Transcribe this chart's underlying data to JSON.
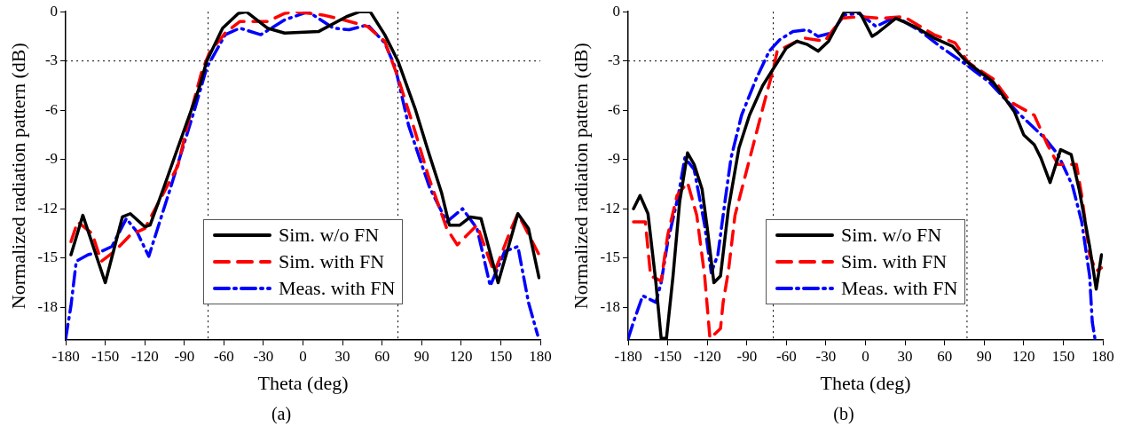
{
  "chart_data": [
    {
      "type": "line",
      "xlabel": "Theta (deg)",
      "ylabel": "Normalized radiation pattern (dB)",
      "annotations": [
        "(a)"
      ],
      "xlim": [
        -180,
        180
      ],
      "xticks": [
        -180,
        -150,
        -120,
        -90,
        -60,
        -30,
        0,
        30,
        60,
        90,
        120,
        150,
        180
      ],
      "ylim": [
        -20,
        0
      ],
      "yticks": [
        -18,
        -15,
        -12,
        -9,
        -6,
        -3,
        0
      ],
      "grid": false,
      "legend": "bottom",
      "marker": "none",
      "ref_lines": [
        {
          "axis": "x",
          "value": -72,
          "line_style": "dotted",
          "color": "#000000"
        },
        {
          "axis": "x",
          "value": 72,
          "line_style": "dotted",
          "color": "#000000"
        },
        {
          "axis": "y",
          "value": -3,
          "line_style": "dotted",
          "color": "#000000"
        }
      ],
      "series": [
        {
          "name": "Sim. w/o FN",
          "color": "#000000",
          "line_style": "solid",
          "x": [
            -176,
            -167,
            -150,
            -137,
            -131,
            -120,
            -116,
            -106,
            -95,
            -79,
            -73,
            -61,
            -49,
            -43,
            -27,
            -14,
            12,
            33,
            43,
            51,
            62,
            72,
            85,
            95,
            105,
            111,
            119,
            127,
            135,
            148,
            163,
            171,
            179
          ],
          "values": [
            -14.8,
            -12.4,
            -16.5,
            -12.5,
            -12.3,
            -13.1,
            -13,
            -10.8,
            -8.3,
            -4.7,
            -3,
            -1,
            -0.1,
            0,
            -1,
            -1.3,
            -1.2,
            -0.3,
            0,
            0,
            -1.4,
            -3,
            -5.9,
            -8.5,
            -11,
            -13,
            -13,
            -12.5,
            -12.6,
            -16.5,
            -12.3,
            -13.2,
            -16.2
          ]
        },
        {
          "name": "Sim. with FN",
          "color": "#ff0000",
          "line_style": "dashed",
          "x": [
            -176,
            -171,
            -160,
            -153,
            -143,
            -131,
            -120,
            -95,
            -87,
            -77,
            -71,
            -59,
            -48,
            -27,
            -14,
            -6,
            15,
            31,
            49,
            62,
            72,
            85,
            95,
            109,
            117,
            132,
            145,
            158,
            163,
            179
          ],
          "values": [
            -14,
            -12.8,
            -13.5,
            -15.2,
            -14.6,
            -13.6,
            -13.2,
            -9.4,
            -6.7,
            -3.7,
            -2.5,
            -1.3,
            -0.6,
            -0.6,
            -0.1,
            0,
            -0.2,
            -0.5,
            -0.9,
            -1.8,
            -4,
            -7.3,
            -10,
            -13.2,
            -14.2,
            -13,
            -15.9,
            -13.2,
            -12.3,
            -14.8
          ]
        },
        {
          "name": "Meas. with FN",
          "color": "#0000ff",
          "line_style": "dashdot",
          "x": [
            -180,
            -176,
            -172,
            -163,
            -153,
            -145,
            -134,
            -126,
            -117,
            -100,
            -92,
            -82,
            -73,
            -59,
            -48,
            -32,
            -14,
            4,
            23,
            35,
            49,
            62,
            70,
            80,
            90,
            96,
            109,
            121,
            132,
            142,
            153,
            163,
            171,
            178
          ],
          "values": [
            -19.9,
            -17.9,
            -15.2,
            -14.8,
            -14.6,
            -14.3,
            -12.6,
            -13.4,
            -14.9,
            -10.6,
            -8.5,
            -5.9,
            -3.4,
            -1.4,
            -1,
            -1.4,
            -0.5,
            0,
            -1,
            -1.1,
            -0.8,
            -1.9,
            -3.4,
            -6.9,
            -9.3,
            -10.7,
            -12.8,
            -12,
            -13.2,
            -16.7,
            -14.6,
            -14.3,
            -17.7,
            -19.7
          ]
        }
      ]
    },
    {
      "type": "line",
      "xlabel": "Theta (deg)",
      "ylabel": "Normalized radiation pattern (dB)",
      "annotations": [
        "(b)"
      ],
      "xlim": [
        -180,
        180
      ],
      "xticks": [
        -180,
        -150,
        -120,
        -90,
        -60,
        -30,
        0,
        30,
        60,
        90,
        120,
        150,
        180
      ],
      "ylim": [
        -20,
        0
      ],
      "yticks": [
        -18,
        -15,
        -12,
        -9,
        -6,
        -3,
        0
      ],
      "grid": false,
      "legend": "bottom",
      "marker": "none",
      "ref_lines": [
        {
          "axis": "x",
          "value": -70,
          "line_style": "dotted",
          "color": "#000000"
        },
        {
          "axis": "x",
          "value": 77,
          "line_style": "dotted",
          "color": "#000000"
        },
        {
          "axis": "y",
          "value": -3,
          "line_style": "dotted",
          "color": "#000000"
        }
      ],
      "series": [
        {
          "name": "Sim. w/o FN",
          "color": "#000000",
          "line_style": "solid",
          "x": [
            -176,
            -171,
            -165,
            -159,
            -155,
            -151,
            -146,
            -141,
            -135,
            -130,
            -124,
            -120,
            -115,
            -110,
            -104,
            -96,
            -88,
            -78,
            -67,
            -60,
            -52,
            -44,
            -36,
            -28,
            -16,
            -5,
            -2,
            5,
            9,
            23,
            37,
            52,
            66,
            76,
            97,
            113,
            120,
            128,
            133,
            140,
            148,
            156,
            162,
            170,
            175,
            179
          ],
          "values": [
            -12,
            -11.2,
            -12.3,
            -16.5,
            -19.9,
            -19.9,
            -16.1,
            -11.6,
            -8.6,
            -9.3,
            -10.8,
            -13.2,
            -16.5,
            -16.1,
            -12,
            -8.3,
            -6.3,
            -4.5,
            -3.1,
            -2.2,
            -1.8,
            -2,
            -2.4,
            -1.8,
            0,
            0,
            -0.4,
            -1.5,
            -1.3,
            -0.4,
            -0.9,
            -1.6,
            -2.1,
            -3,
            -4.3,
            -6.1,
            -7.5,
            -8.1,
            -8.9,
            -10.4,
            -8.4,
            -8.7,
            -10.8,
            -14.3,
            -16.9,
            -14.8
          ]
        },
        {
          "name": "Sim. with FN",
          "color": "#ff0000",
          "line_style": "dashed",
          "x": [
            -176,
            -167,
            -163,
            -155,
            -150,
            -143,
            -135,
            -128,
            -122,
            -118,
            -110,
            -108,
            -104,
            -99,
            -88,
            -78,
            -70,
            -67,
            -47,
            -31,
            -18,
            -5,
            13,
            29,
            52,
            68,
            78,
            97,
            110,
            128,
            138,
            146,
            160,
            164,
            170,
            175,
            179
          ],
          "values": [
            -12.8,
            -12.8,
            -16.1,
            -16.4,
            -13.6,
            -11.2,
            -10.4,
            -12.4,
            -16.1,
            -19.9,
            -19.3,
            -17.7,
            -15.8,
            -12.4,
            -9,
            -5.9,
            -3.5,
            -2.4,
            -1.6,
            -1.8,
            -0.4,
            -0.3,
            -0.4,
            -0.3,
            -1.4,
            -1.9,
            -3.1,
            -4.1,
            -5.5,
            -6.3,
            -8.1,
            -9.3,
            -9.3,
            -11.2,
            -14.8,
            -15.8,
            -15.6
          ]
        },
        {
          "name": "Meas. with FN",
          "color": "#0000ff",
          "line_style": "dashdot",
          "x": [
            -180,
            -176,
            -169,
            -159,
            -155,
            -150,
            -142,
            -137,
            -130,
            -122,
            -117,
            -112,
            -106,
            -102,
            -94,
            -83,
            -73,
            -65,
            -55,
            -44,
            -36,
            -26,
            -16,
            -5,
            0,
            8,
            23,
            42,
            58,
            76,
            94,
            115,
            136,
            146,
            157,
            164,
            170,
            172,
            174
          ],
          "values": [
            -19.9,
            -18.9,
            -17.3,
            -17.7,
            -16.5,
            -14,
            -11.2,
            -8.9,
            -9.6,
            -13,
            -15.9,
            -14.8,
            -11.2,
            -8.9,
            -6.3,
            -4.1,
            -2.4,
            -1.7,
            -1.2,
            -1.1,
            -1.5,
            -1.3,
            -0.2,
            -0.1,
            -0.4,
            -0.9,
            -0.3,
            -1.2,
            -2.2,
            -3.2,
            -4.3,
            -6.1,
            -7.7,
            -8.7,
            -10.6,
            -12.8,
            -16.1,
            -18.9,
            -19.9
          ]
        }
      ]
    }
  ]
}
